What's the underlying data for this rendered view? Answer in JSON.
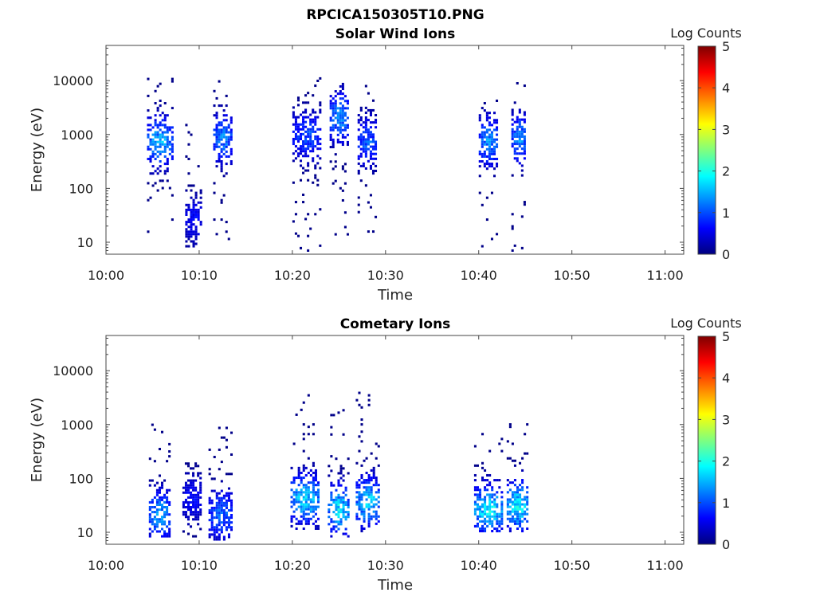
{
  "figure": {
    "title": "RPCICA150305T10.PNG"
  },
  "colorscale": {
    "label": "Log Counts",
    "min": 0,
    "max": 5,
    "ticks": [
      "0",
      "1",
      "2",
      "3",
      "4",
      "5"
    ],
    "stops": [
      "#00007f",
      "#0000ff",
      "#007fff",
      "#00ffff",
      "#7fff7f",
      "#ffff00",
      "#ff7f00",
      "#ff0000",
      "#7f0000"
    ]
  },
  "chart_data": [
    {
      "type": "heatmap",
      "title": "Solar Wind Ions",
      "xlabel": "Time",
      "ylabel": "Energy (eV)",
      "x_range": [
        "10:00",
        "11:02"
      ],
      "y_scale": "log",
      "y_range": [
        6,
        45000
      ],
      "xtick_labels": [
        "10:00",
        "10:10",
        "10:20",
        "10:30",
        "10:40",
        "10:50",
        "11:00"
      ],
      "ytick_labels": [
        "10",
        "100",
        "1000",
        "10000"
      ],
      "colorbar_label": "Log Counts",
      "clusters": [
        {
          "t_start": "10:04.4",
          "t_end": "10:07.0",
          "e_min": 8,
          "e_max": 12000,
          "peak_energy": 700,
          "peak_log_counts": 1.8
        },
        {
          "t_start": "10:08.5",
          "t_end": "10:10.2",
          "e_min": 8,
          "e_max": 2000,
          "peak_energy": 25,
          "peak_log_counts": 0.8
        },
        {
          "t_start": "10:11.5",
          "t_end": "10:13.5",
          "e_min": 8,
          "e_max": 10000,
          "peak_energy": 800,
          "peak_log_counts": 1.5
        },
        {
          "t_start": "10:20.0",
          "t_end": "10:23.0",
          "e_min": 6,
          "e_max": 11000,
          "peak_energy": 900,
          "peak_log_counts": 1.2
        },
        {
          "t_start": "10:24.0",
          "t_end": "10:26.0",
          "e_min": 12,
          "e_max": 9000,
          "peak_energy": 2000,
          "peak_log_counts": 1.6
        },
        {
          "t_start": "10:27.0",
          "t_end": "10:29.0",
          "e_min": 15,
          "e_max": 8000,
          "peak_energy": 700,
          "peak_log_counts": 1.3
        },
        {
          "t_start": "10:40.0",
          "t_end": "10:42.0",
          "e_min": 8,
          "e_max": 6000,
          "peak_energy": 700,
          "peak_log_counts": 1.6
        },
        {
          "t_start": "10:43.5",
          "t_end": "10:45.0",
          "e_min": 6,
          "e_max": 9000,
          "peak_energy": 800,
          "peak_log_counts": 1.6
        }
      ]
    },
    {
      "type": "heatmap",
      "title": "Cometary Ions",
      "xlabel": "Time",
      "ylabel": "Energy (eV)",
      "x_range": [
        "10:00",
        "11:02"
      ],
      "y_scale": "log",
      "y_range": [
        6,
        45000
      ],
      "xtick_labels": [
        "10:00",
        "10:10",
        "10:20",
        "10:30",
        "10:40",
        "10:50",
        "11:00"
      ],
      "ytick_labels": [
        "10",
        "100",
        "1000",
        "10000"
      ],
      "colorbar_label": "Log Counts",
      "clusters": [
        {
          "t_start": "10:04.6",
          "t_end": "10:06.8",
          "e_min": 8,
          "e_max": 1200,
          "peak_energy": 20,
          "peak_log_counts": 1.7
        },
        {
          "t_start": "10:08.2",
          "t_end": "10:10.2",
          "e_min": 8,
          "e_max": 180,
          "peak_energy": 40,
          "peak_log_counts": 0.8
        },
        {
          "t_start": "10:11.0",
          "t_end": "10:13.5",
          "e_min": 7,
          "e_max": 1000,
          "peak_energy": 20,
          "peak_log_counts": 1.4
        },
        {
          "t_start": "10:19.8",
          "t_end": "10:22.8",
          "e_min": 10,
          "e_max": 4000,
          "peak_energy": 40,
          "peak_log_counts": 2.0
        },
        {
          "t_start": "10:23.8",
          "t_end": "10:26.0",
          "e_min": 8,
          "e_max": 4000,
          "peak_energy": 25,
          "peak_log_counts": 2.1
        },
        {
          "t_start": "10:26.8",
          "t_end": "10:29.2",
          "e_min": 10,
          "e_max": 4000,
          "peak_energy": 35,
          "peak_log_counts": 2.0
        },
        {
          "t_start": "10:39.5",
          "t_end": "10:42.5",
          "e_min": 10,
          "e_max": 900,
          "peak_energy": 25,
          "peak_log_counts": 2.2
        },
        {
          "t_start": "10:43.0",
          "t_end": "10:45.3",
          "e_min": 10,
          "e_max": 1000,
          "peak_energy": 30,
          "peak_log_counts": 2.2
        }
      ]
    }
  ]
}
